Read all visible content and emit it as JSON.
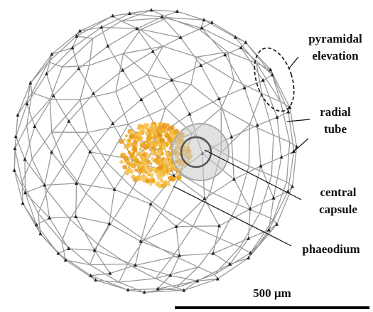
{
  "labels": [
    {
      "lines": [
        "pyramidal",
        "elevation"
      ]
    },
    {
      "lines": [
        "radial",
        "tube"
      ]
    },
    {
      "lines": [
        "central",
        "capsule"
      ]
    },
    {
      "lines": [
        "phaeodium"
      ]
    }
  ],
  "scale_bar": {
    "label": "500 µm"
  }
}
